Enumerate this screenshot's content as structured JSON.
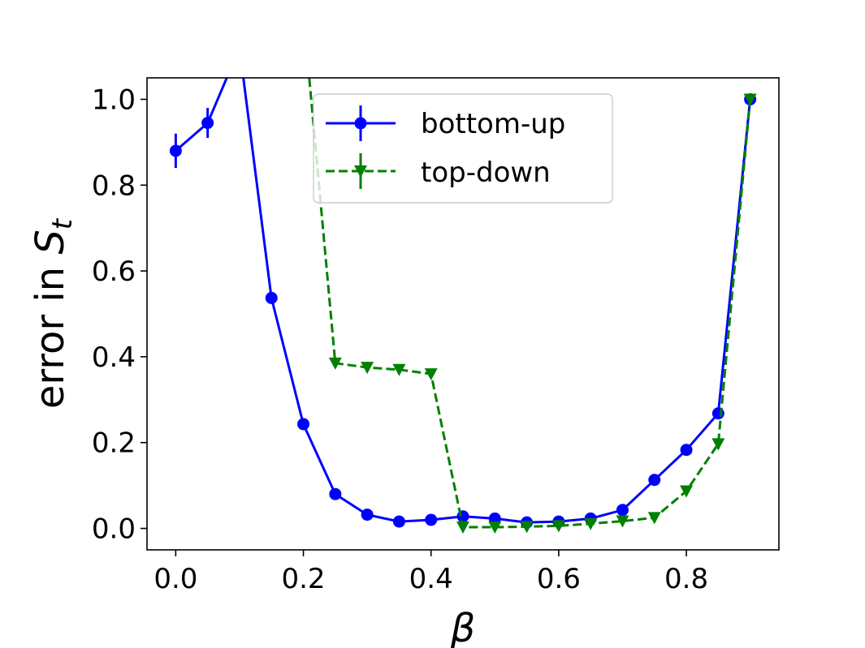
{
  "chart_data": {
    "type": "line",
    "xlabel": "β",
    "ylabel": "error in ",
    "ylabel_symbol": "S",
    "ylabel_subscript": "t",
    "xlim": [
      -0.045,
      0.945
    ],
    "ylim": [
      -0.05,
      1.05
    ],
    "xticks": [
      0.0,
      0.2,
      0.4,
      0.6,
      0.8
    ],
    "xtick_labels": [
      "0.0",
      "0.2",
      "0.4",
      "0.6",
      "0.8"
    ],
    "yticks": [
      0.0,
      0.2,
      0.4,
      0.6,
      0.8,
      1.0
    ],
    "ytick_labels": [
      "0.0",
      "0.2",
      "0.4",
      "0.6",
      "0.8",
      "1.0"
    ],
    "grid": false,
    "legend_position": "upper-center",
    "series": [
      {
        "name": "bottom-up",
        "color": "#0000ff",
        "line_style": "solid",
        "marker": "circle",
        "x": [
          0.0,
          0.05,
          0.1,
          0.15,
          0.2,
          0.25,
          0.3,
          0.35,
          0.4,
          0.45,
          0.5,
          0.55,
          0.6,
          0.65,
          0.7,
          0.75,
          0.8,
          0.85,
          0.9
        ],
        "y": [
          0.88,
          0.945,
          1.12,
          0.537,
          0.243,
          0.08,
          0.032,
          0.016,
          0.02,
          0.028,
          0.023,
          0.014,
          0.016,
          0.023,
          0.043,
          0.113,
          0.183,
          0.268,
          1.0
        ],
        "yerr": [
          0.04,
          0.035,
          0.0,
          0.005,
          0.005,
          0.004,
          0.003,
          0.003,
          0.003,
          0.003,
          0.003,
          0.003,
          0.003,
          0.003,
          0.003,
          0.005,
          0.005,
          0.007,
          0.003
        ]
      },
      {
        "name": "top-down",
        "color": "#008000",
        "line_style": "dashed",
        "marker": "triangle-down",
        "x": [
          0.2,
          0.25,
          0.3,
          0.35,
          0.4,
          0.45,
          0.5,
          0.55,
          0.6,
          0.65,
          0.7,
          0.75,
          0.8,
          0.85,
          0.9
        ],
        "y": [
          1.2,
          0.385,
          0.375,
          0.37,
          0.36,
          0.003,
          0.003,
          0.004,
          0.006,
          0.011,
          0.017,
          0.025,
          0.087,
          0.197,
          1.0
        ],
        "yerr": [
          0.0,
          0.01,
          0.008,
          0.008,
          0.01,
          0.003,
          0.002,
          0.002,
          0.002,
          0.002,
          0.002,
          0.003,
          0.005,
          0.012,
          0.003
        ]
      }
    ]
  }
}
